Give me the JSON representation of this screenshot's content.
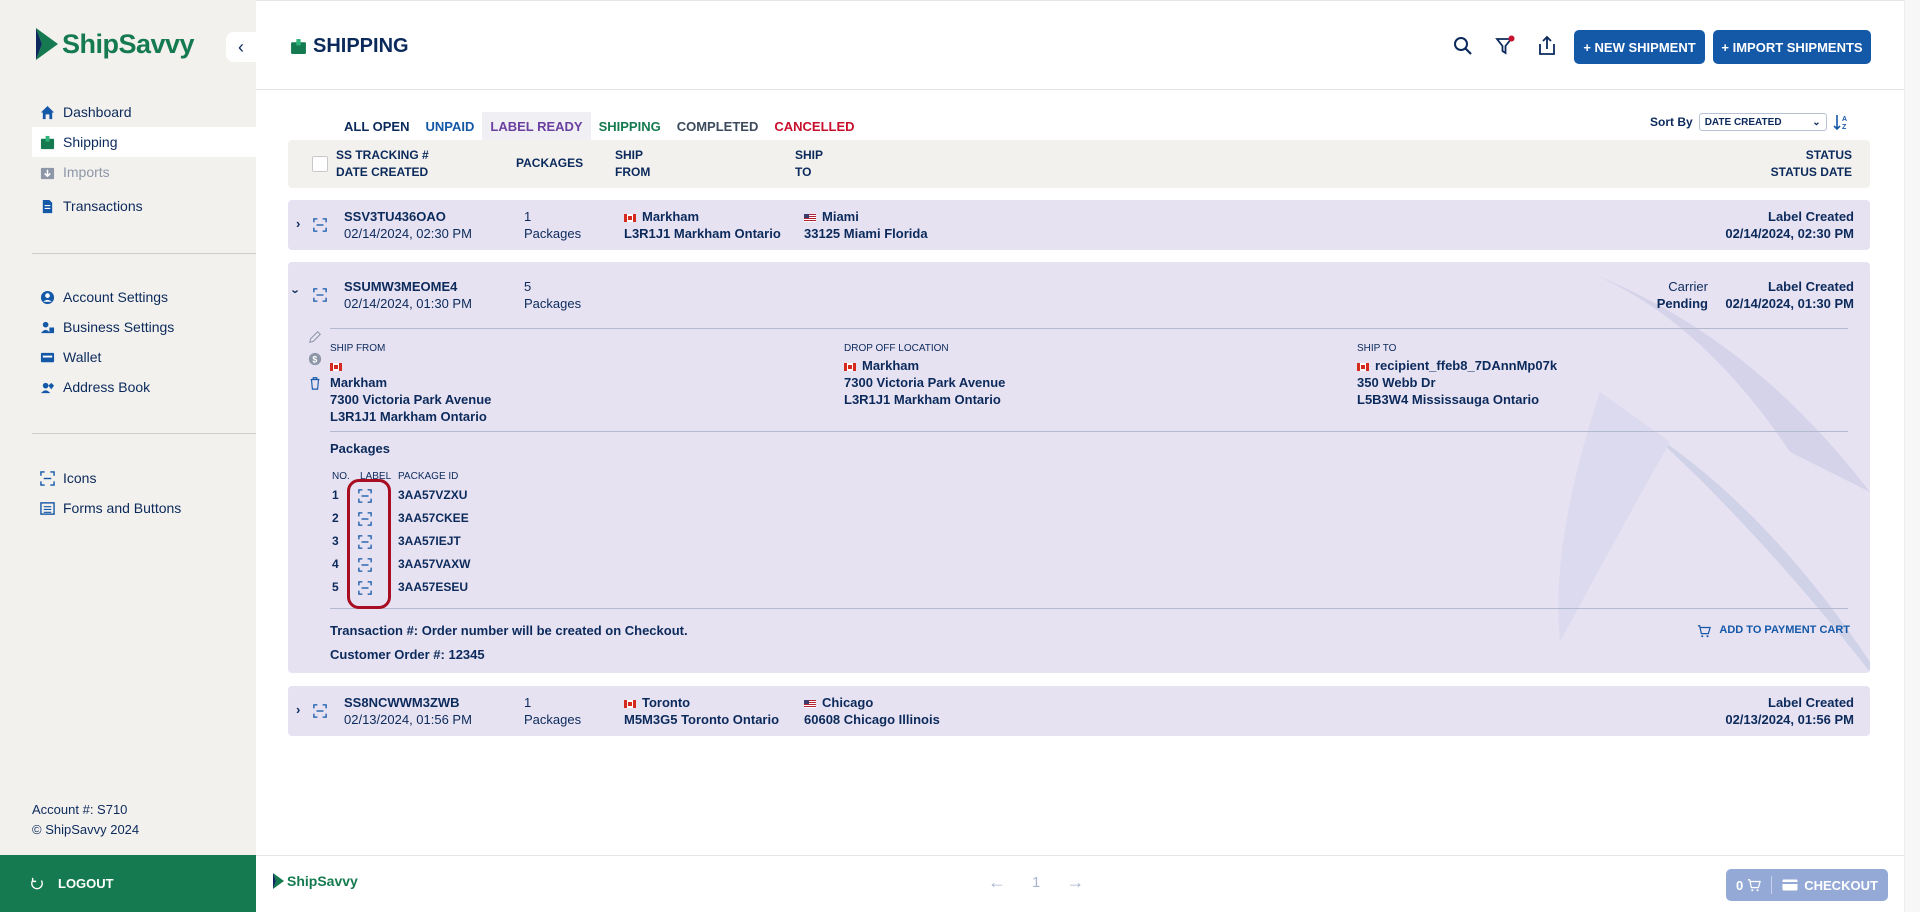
{
  "brand": {
    "name": "ShipSavvy",
    "green": "#157a4f",
    "navy": "#0b2a5b",
    "blue": "#1458a8",
    "red": "#a80d22"
  },
  "sidebar": {
    "items": [
      {
        "label": "Dashboard",
        "icon": "home-icon"
      },
      {
        "label": "Shipping",
        "icon": "package-icon"
      },
      {
        "label": "Imports",
        "icon": "import-icon"
      },
      {
        "label": "Transactions",
        "icon": "document-icon"
      }
    ],
    "settings": [
      {
        "label": "Account Settings",
        "icon": "user-circle-icon"
      },
      {
        "label": "Business Settings",
        "icon": "business-icon"
      },
      {
        "label": "Wallet",
        "icon": "wallet-icon"
      },
      {
        "label": "Address Book",
        "icon": "address-book-icon"
      }
    ],
    "dev": [
      {
        "label": "Icons",
        "icon": "barcode-scan-icon"
      },
      {
        "label": "Forms and Buttons",
        "icon": "list-icon"
      }
    ],
    "account": "Account #: S710",
    "copyright": "© ShipSavvy 2024",
    "logout": "LOGOUT"
  },
  "header": {
    "title": "SHIPPING",
    "new_shipment": "+ NEW SHIPMENT",
    "import_shipments": "+ IMPORT SHIPMENTS"
  },
  "filters": {
    "tabs": [
      "ALL OPEN",
      "UNPAID",
      "LABEL READY",
      "SHIPPING",
      "COMPLETED",
      "CANCELLED"
    ],
    "tab_colors": [
      "#0b2a5b",
      "#1458a8",
      "#6b3fa0",
      "#157a4f",
      "#3c4a5c",
      "#c8102e"
    ],
    "sort_label": "Sort By",
    "sort_value": "DATE CREATED"
  },
  "table_header": {
    "col1a": "SS TRACKING #",
    "col1b": "DATE CREATED",
    "col2": "PACKAGES",
    "col3a": "SHIP",
    "col3b": "FROM",
    "col4a": "SHIP",
    "col4b": "TO",
    "col5a": "STATUS",
    "col5b": "STATUS DATE"
  },
  "rows": [
    {
      "tracking": "SSV3TU436OAO",
      "date": "02/14/2024, 02:30 PM",
      "count": "1",
      "pk_label": "Packages",
      "from_city": "Markham",
      "from_addr": "L3R1J1 Markham Ontario",
      "to_city": "Miami",
      "to_addr": "33125 Miami Florida",
      "status": "Label Created",
      "status_date": "02/14/2024, 02:30 PM"
    },
    {
      "tracking": "SSUMW3MEOME4",
      "date": "02/14/2024, 01:30 PM",
      "count": "5",
      "pk_label": "Packages",
      "carrier": "Carrier",
      "carrier_status": "Pending",
      "status": "Label Created",
      "status_date": "02/14/2024, 01:30 PM"
    },
    {
      "tracking": "SS8NCWWM3ZWB",
      "date": "02/13/2024, 01:56 PM",
      "count": "1",
      "pk_label": "Packages",
      "from_city": "Toronto",
      "from_addr": "M5M3G5 Toronto Ontario",
      "to_city": "Chicago",
      "to_addr": "60608 Chicago Illinois",
      "status": "Label Created",
      "status_date": "02/13/2024, 01:56 PM"
    }
  ],
  "detail": {
    "ship_from_label": "SHIP FROM",
    "ship_from_name": "Markham",
    "ship_from_street": "7300 Victoria Park Avenue",
    "ship_from_city": "L3R1J1 Markham Ontario",
    "dropoff_label": "DROP OFF LOCATION",
    "dropoff_name": "Markham",
    "dropoff_street": "7300 Victoria Park Avenue",
    "dropoff_city": "L3R1J1 Markham Ontario",
    "ship_to_label": "SHIP TO",
    "ship_to_name": "recipient_ffeb8_7DAnnMp07k",
    "ship_to_street": "350 Webb Dr",
    "ship_to_city": "L5B3W4 Mississauga Ontario",
    "packages_title": "Packages",
    "col_no": "NO.",
    "col_label": "LABEL",
    "col_pkg": "PACKAGE ID",
    "packages": [
      {
        "no": "1",
        "id": "3AA57VZXU"
      },
      {
        "no": "2",
        "id": "3AA57CKEE"
      },
      {
        "no": "3",
        "id": "3AA57IEJT"
      },
      {
        "no": "4",
        "id": "3AA57VAXW"
      },
      {
        "no": "5",
        "id": "3AA57ESEU"
      }
    ],
    "transaction": "Transaction #: Order number will be created on Checkout.",
    "customer_order": "Customer Order #: 12345",
    "add_to_cart": "ADD TO PAYMENT CART"
  },
  "footer": {
    "brand": "ShipSavvy",
    "page": "1",
    "cart_count": "0",
    "checkout": "CHECKOUT"
  }
}
